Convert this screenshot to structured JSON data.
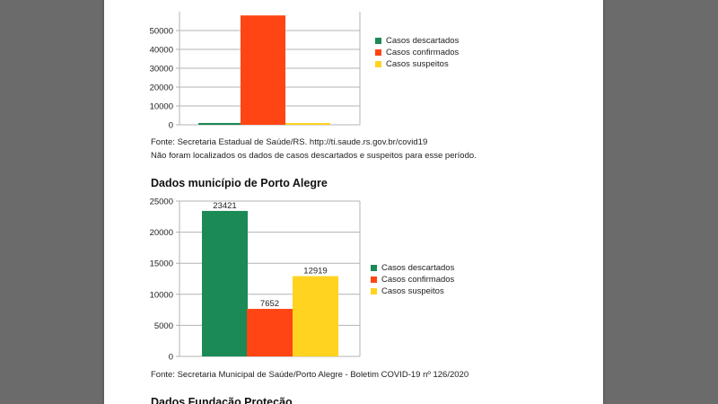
{
  "colors": {
    "descartados": "#1b8a56",
    "confirmados": "#ff4514",
    "suspeitos": "#ffd320"
  },
  "notes": {
    "fonte_estado": "Fonte: Secretaria Estadual de Saúde/RS. http://ti.saude.rs.gov.br/covid19",
    "nao_localizados": "Não foram localizados os dados de casos descartados e suspeitos para esse período.",
    "fonte_poa": "Fonte: Secretaria Municipal de Saúde/Porto Alegre - Boletim COVID-19 nº 126/2020"
  },
  "headings": {
    "porto_alegre": "Dados município de Porto Alegre",
    "fundacao": "Dados Fundação Proteção"
  },
  "chart_data": [
    {
      "type": "bar",
      "title": "",
      "categories": [
        "Casos descartados",
        "Casos confirmados",
        "Casos suspeitos"
      ],
      "values": [
        0,
        58000,
        0
      ],
      "yticks": [
        0,
        10000,
        20000,
        30000,
        40000,
        50000
      ],
      "ylim": [
        0,
        60000
      ],
      "legend": [
        "Casos descartados",
        "Casos confirmados",
        "Casos suspeitos"
      ],
      "legend_position": "right",
      "grid": true
    },
    {
      "type": "bar",
      "title": "",
      "categories": [
        "Casos descartados",
        "Casos confirmados",
        "Casos suspeitos"
      ],
      "values": [
        23421,
        7652,
        12919
      ],
      "data_labels": [
        "23421",
        "7652",
        "12919"
      ],
      "yticks": [
        0,
        5000,
        10000,
        15000,
        20000,
        25000
      ],
      "ylim": [
        0,
        25000
      ],
      "legend": [
        "Casos descartados",
        "Casos confirmados",
        "Casos suspeitos"
      ],
      "legend_position": "right",
      "grid": true
    }
  ]
}
